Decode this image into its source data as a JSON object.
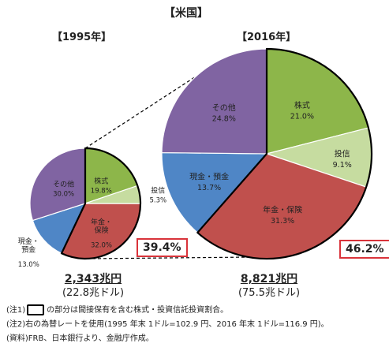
{
  "title": "【米国】",
  "chart_data": [
    {
      "type": "pie",
      "title": "【1995年】",
      "slices": [
        {
          "label": "株式",
          "value": 19.8,
          "color": "#8db64a"
        },
        {
          "label": "投信",
          "value": 5.3,
          "color": "#c6dca0"
        },
        {
          "label": "年金・保険",
          "value": 32.0,
          "color": "#c0504d"
        },
        {
          "label": "現金・預金",
          "value": 13.0,
          "color": "#4f86c6"
        },
        {
          "label": "その他",
          "value": 30.0,
          "color": "#8064a2"
        }
      ],
      "highlight": "39.4%",
      "total": "2,343兆円",
      "total_usd": "(22.8兆ドル)"
    },
    {
      "type": "pie",
      "title": "【2016年】",
      "slices": [
        {
          "label": "株式",
          "value": 21.0,
          "color": "#8db64a"
        },
        {
          "label": "投信",
          "value": 9.1,
          "color": "#c6dca0"
        },
        {
          "label": "年金・保険",
          "value": 31.3,
          "color": "#c0504d"
        },
        {
          "label": "現金・預金",
          "value": 13.7,
          "color": "#4f86c6"
        },
        {
          "label": "その他",
          "value": 24.8,
          "color": "#8064a2"
        }
      ],
      "highlight": "46.2%",
      "total": "8,821兆円",
      "total_usd": "(75.5兆ドル)"
    }
  ],
  "notes": {
    "note1_prefix": "(注1)",
    "note1_text": "の部分は間接保有を含む株式・投資信託投資割合。",
    "note2": "(注2)右の為替レートを使用(1995 年末 1ドル=102.9 円、2016 年末 1ドル=116.9 円)。",
    "source": "(資料)FRB、日本銀行より、金融庁作成。"
  }
}
